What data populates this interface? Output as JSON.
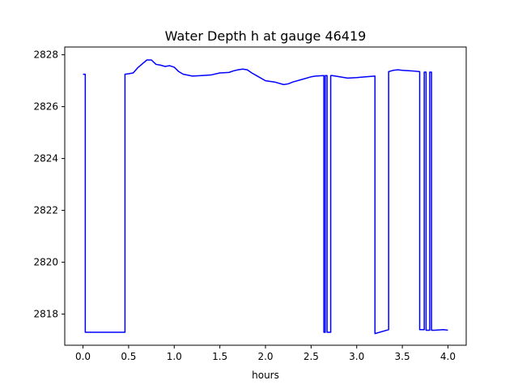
{
  "chart_data": {
    "type": "line",
    "title": "Water Depth h at gauge 46419",
    "xlabel": "hours",
    "ylabel": "",
    "xlim": [
      -0.2,
      4.2
    ],
    "ylim": [
      2816.8,
      2828.3
    ],
    "grid": false,
    "xticks": [
      0.0,
      0.5,
      1.0,
      1.5,
      2.0,
      2.5,
      3.0,
      3.5,
      4.0
    ],
    "xtick_labels": [
      "0.0",
      "0.5",
      "1.0",
      "1.5",
      "2.0",
      "2.5",
      "3.0",
      "3.5",
      "4.0"
    ],
    "yticks": [
      2818,
      2820,
      2822,
      2824,
      2826,
      2828
    ],
    "ytick_labels": [
      "2818",
      "2820",
      "2822",
      "2824",
      "2826",
      "2828"
    ],
    "series": [
      {
        "color": "#0000ff",
        "x": [
          0.0,
          0.025,
          0.025,
          0.46,
          0.46,
          0.5,
          0.55,
          0.6,
          0.65,
          0.7,
          0.75,
          0.8,
          0.85,
          0.9,
          0.95,
          1.0,
          1.05,
          1.1,
          1.2,
          1.3,
          1.4,
          1.5,
          1.6,
          1.65,
          1.7,
          1.75,
          1.8,
          1.85,
          1.9,
          2.0,
          2.1,
          2.2,
          2.25,
          2.3,
          2.4,
          2.5,
          2.55,
          2.64,
          2.64,
          2.655,
          2.655,
          2.675,
          2.675,
          2.7,
          2.715,
          2.715,
          2.73,
          2.73,
          2.78,
          2.9,
          3.0,
          3.1,
          3.2,
          3.2,
          3.35,
          3.35,
          3.4,
          3.45,
          3.5,
          3.6,
          3.69,
          3.69,
          3.74,
          3.74,
          3.76,
          3.76,
          3.8,
          3.8,
          3.82,
          3.82,
          3.85,
          3.95,
          4.0
        ],
        "y": [
          2827.25,
          2827.25,
          2817.3,
          2817.3,
          2827.25,
          2827.27,
          2827.3,
          2827.5,
          2827.65,
          2827.8,
          2827.8,
          2827.63,
          2827.6,
          2827.55,
          2827.58,
          2827.52,
          2827.35,
          2827.25,
          2827.18,
          2827.2,
          2827.22,
          2827.3,
          2827.32,
          2827.38,
          2827.42,
          2827.45,
          2827.42,
          2827.3,
          2827.2,
          2827.0,
          2826.95,
          2826.85,
          2826.88,
          2826.95,
          2827.05,
          2827.15,
          2827.18,
          2827.2,
          2817.3,
          2817.3,
          2827.2,
          2827.2,
          2817.3,
          2817.3,
          2817.3,
          2827.2,
          2827.2,
          2827.2,
          2827.17,
          2827.1,
          2827.12,
          2827.15,
          2827.18,
          2817.25,
          2817.4,
          2827.35,
          2827.4,
          2827.42,
          2827.4,
          2827.38,
          2827.35,
          2817.4,
          2817.4,
          2827.33,
          2827.33,
          2817.38,
          2817.38,
          2827.33,
          2827.33,
          2817.38,
          2817.38,
          2817.4,
          2817.38
        ]
      }
    ]
  }
}
